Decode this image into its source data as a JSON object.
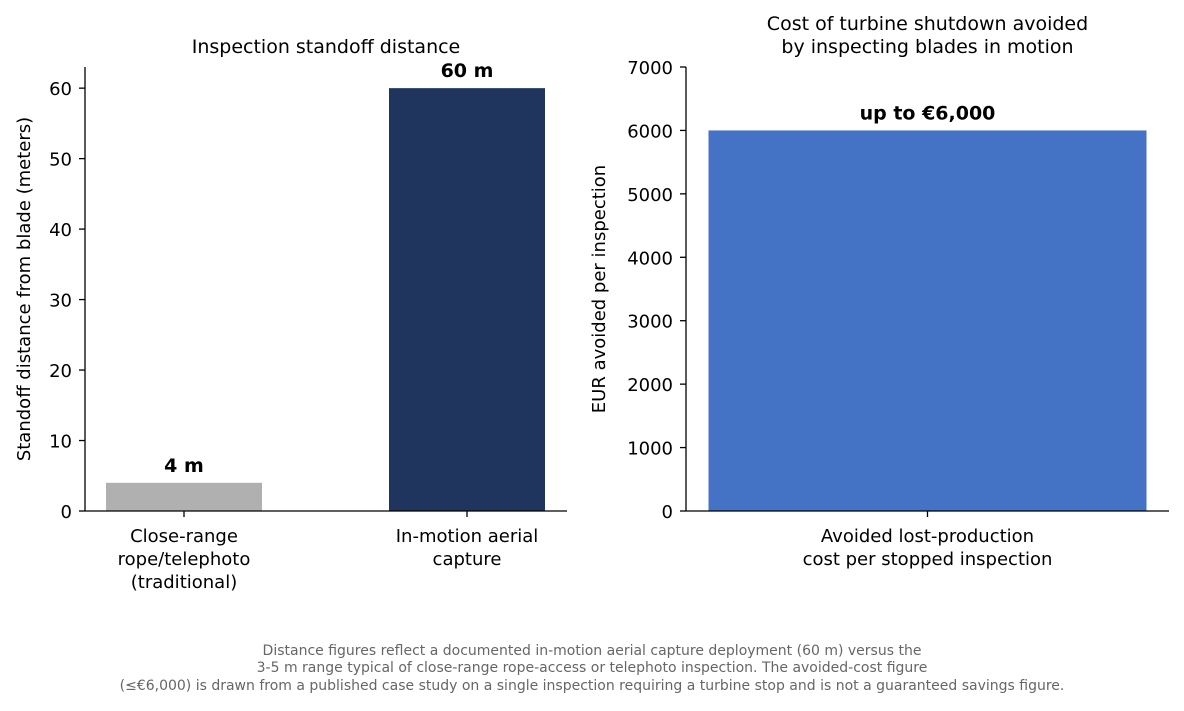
{
  "chart_data": [
    {
      "type": "bar",
      "title": "Inspection standoff distance",
      "ylabel": "Standoff distance from blade (meters)",
      "xlabel": "",
      "categories": [
        [
          "Close-range",
          "rope/telephoto",
          "(traditional)"
        ],
        [
          "In-motion aerial",
          "capture"
        ]
      ],
      "values": [
        4,
        60
      ],
      "value_labels": [
        "4 m",
        "60 m"
      ],
      "colors": [
        "#b0b0b0",
        "#1f355e"
      ],
      "ylim": [
        0,
        63
      ],
      "yticks": [
        0,
        10,
        20,
        30,
        40,
        50,
        60
      ],
      "grid": false
    },
    {
      "type": "bar",
      "title": [
        "Cost of turbine shutdown avoided",
        "by inspecting blades in motion"
      ],
      "ylabel": "EUR avoided per inspection",
      "xlabel": "",
      "categories": [
        [
          "Avoided lost-production",
          "cost per stopped inspection"
        ]
      ],
      "values": [
        6000
      ],
      "value_labels": [
        "up to €6,000"
      ],
      "colors": [
        "#4472c4"
      ],
      "ylim": [
        0,
        7000
      ],
      "yticks": [
        0,
        1000,
        2000,
        3000,
        4000,
        5000,
        6000,
        7000
      ],
      "grid": false
    }
  ],
  "footnote": [
    "Distance figures reflect a documented in-motion aerial capture deployment (60 m) versus the",
    "3-5 m range typical of close-range rope-access or telephoto inspection. The avoided-cost figure",
    "(≤€6,000) is drawn from a published case study on a single inspection requiring a turbine stop and is not a guaranteed savings figure."
  ]
}
